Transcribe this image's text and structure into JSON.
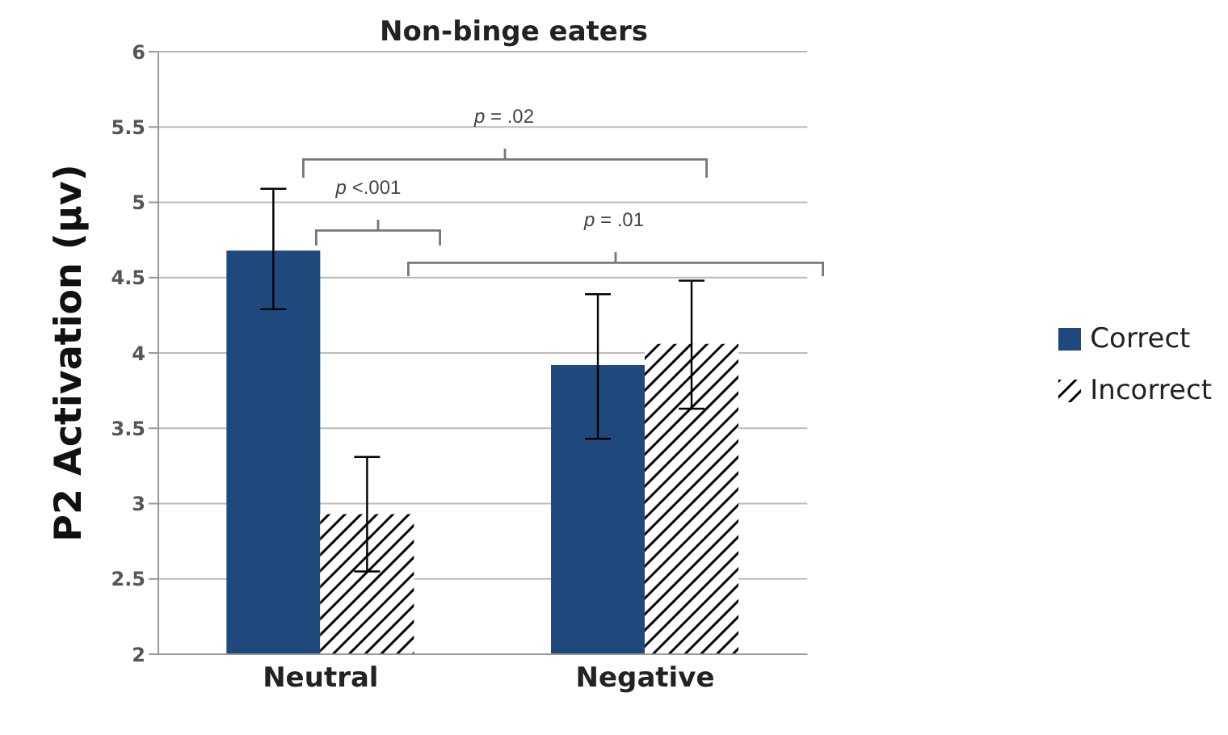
{
  "chart_data": {
    "type": "bar",
    "title": "Non-binge eaters",
    "ylabel": "P2 Activation (µv)",
    "categories": [
      "Neutral",
      "Negative"
    ],
    "series": [
      {
        "name": "Correct",
        "color": "#1f497d",
        "values": [
          4.68,
          3.92
        ],
        "errors": [
          [
            4.29,
            5.09
          ],
          [
            3.43,
            4.39
          ]
        ]
      },
      {
        "name": "Incorrect",
        "color": "#000000",
        "values": [
          2.93,
          4.06
        ],
        "errors": [
          [
            2.55,
            3.31
          ],
          [
            3.63,
            4.48
          ]
        ]
      }
    ],
    "ylim": [
      2,
      6
    ],
    "yticks": [
      2,
      2.5,
      3,
      3.5,
      4,
      4.5,
      5,
      5.5,
      6
    ],
    "grid": "y",
    "legend": "right",
    "annotations": [
      "p = .02",
      "p <.001",
      "p = .01"
    ]
  }
}
